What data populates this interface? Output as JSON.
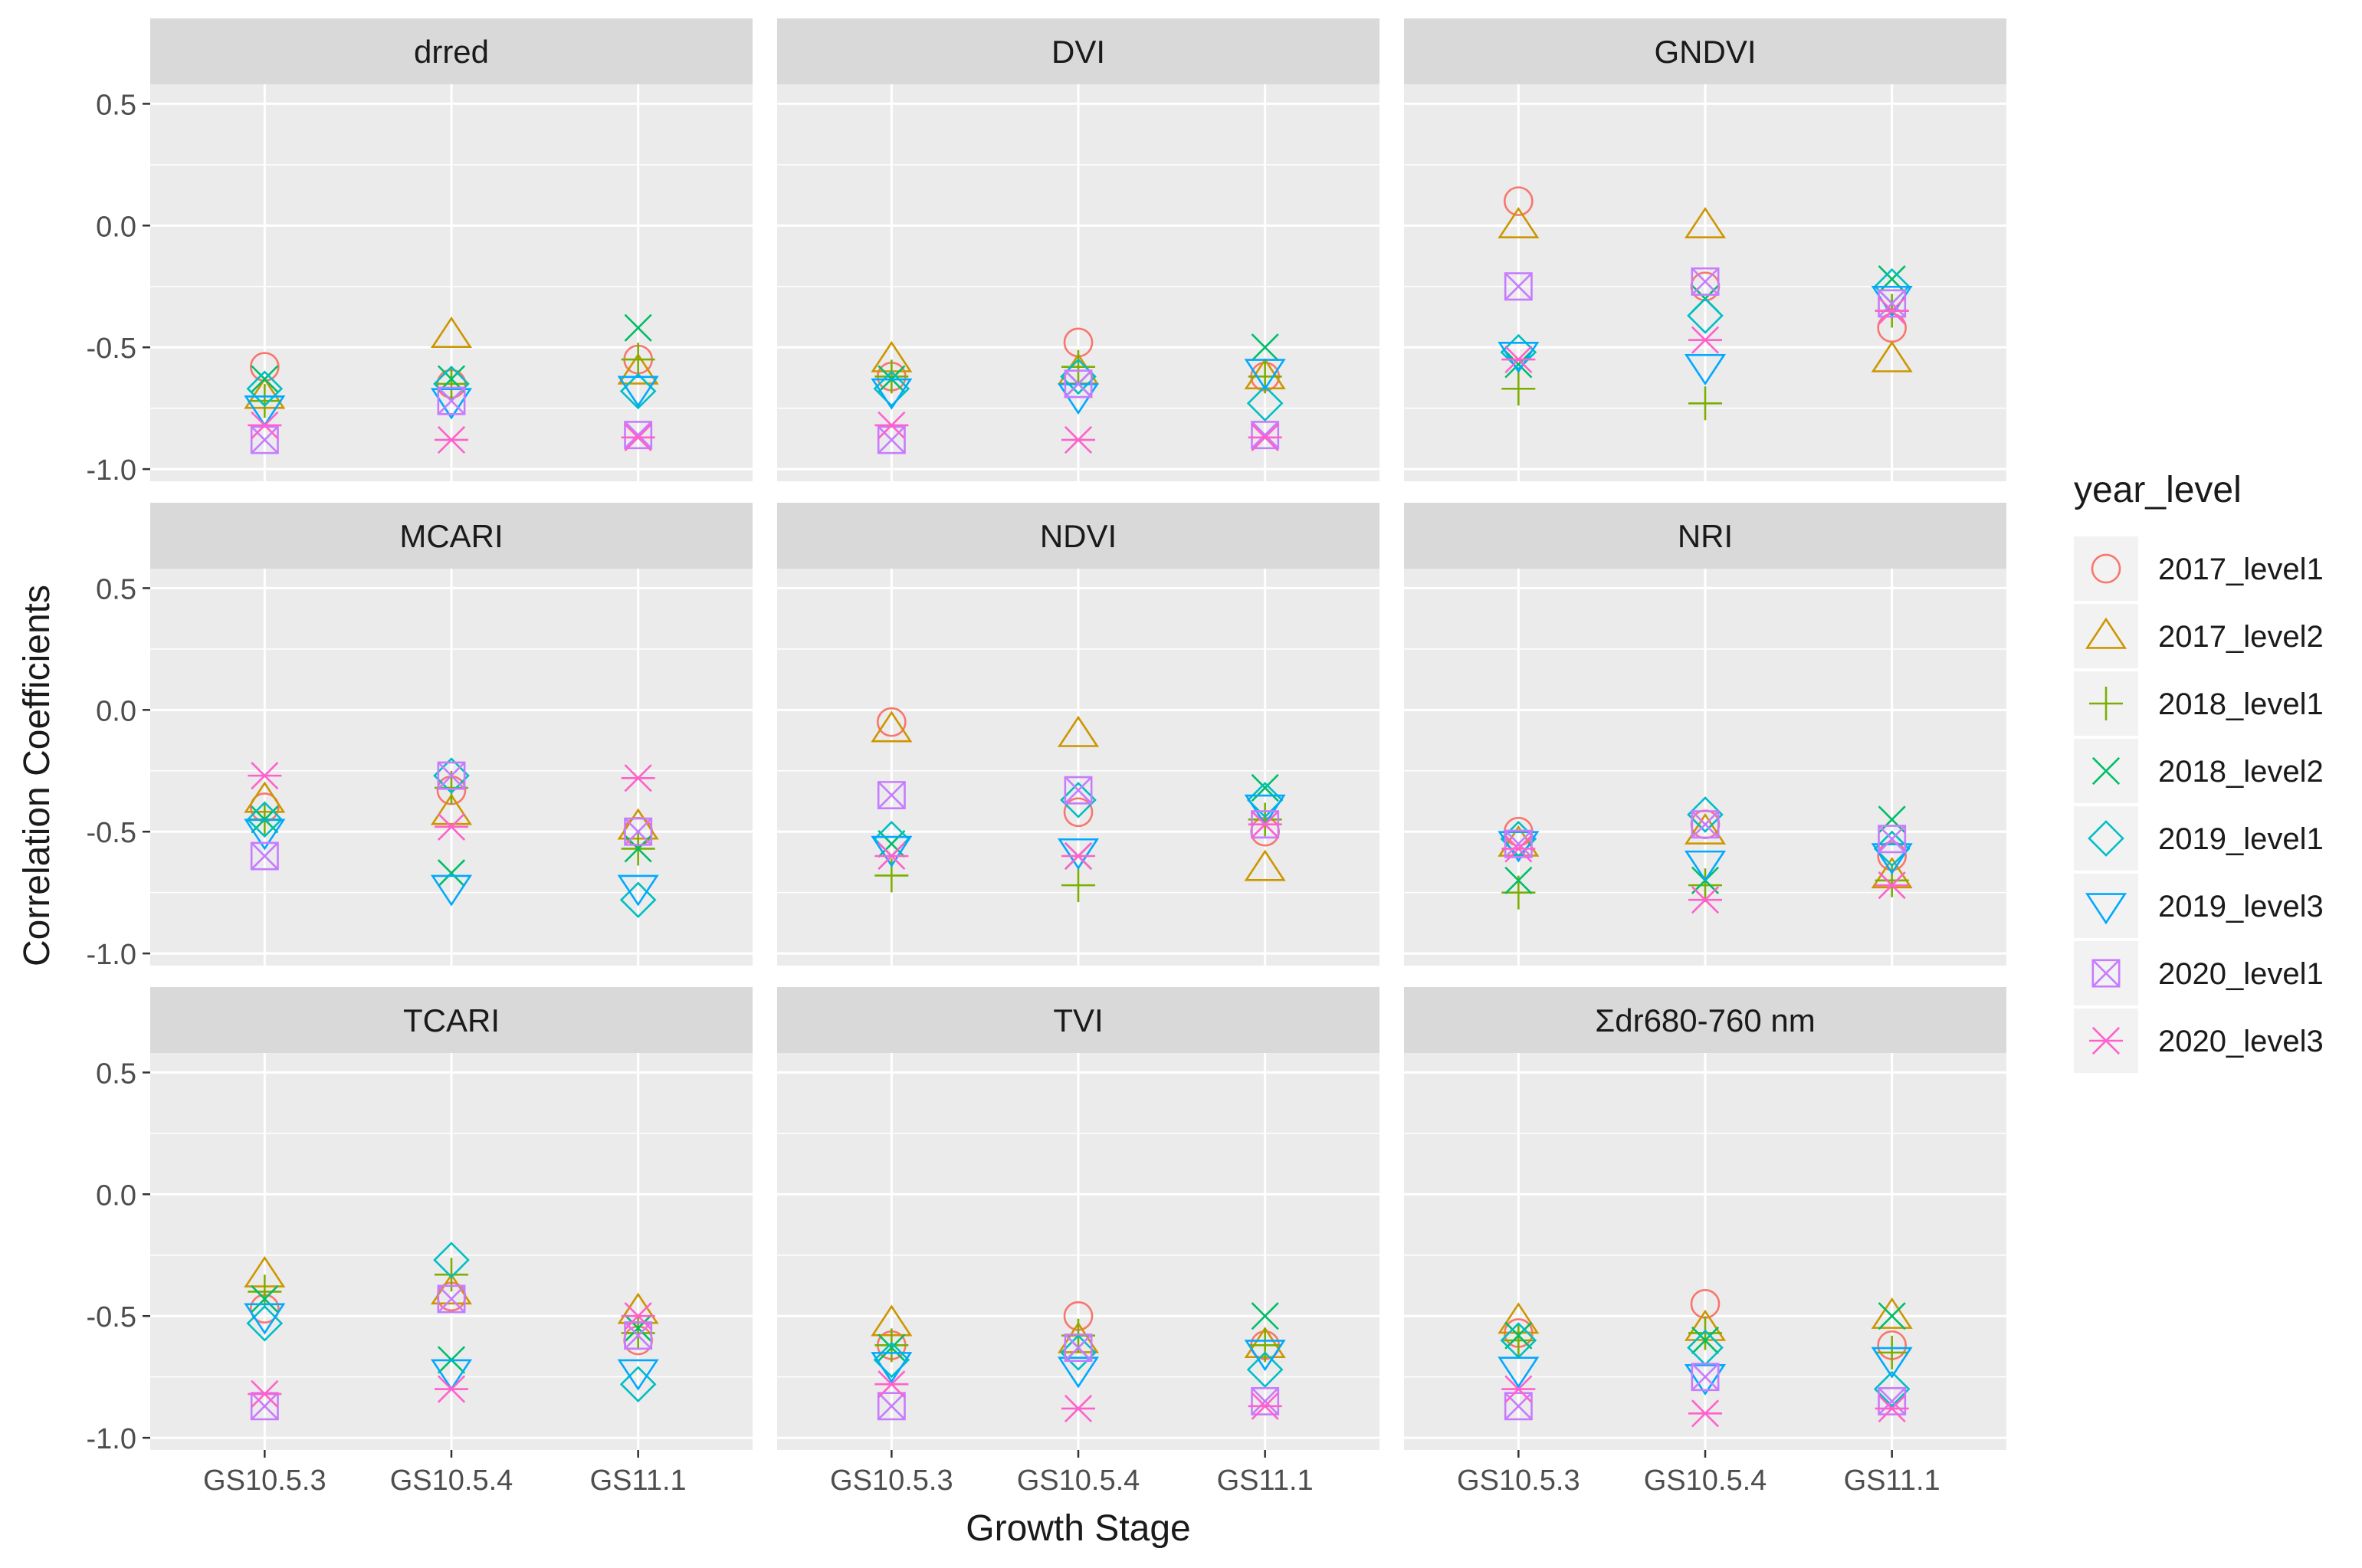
{
  "chart_data": {
    "type": "scatter",
    "xlabel": "Growth Stage",
    "ylabel": "Correlation Coefficients",
    "categories": [
      "GS10.5.3",
      "GS10.5.4",
      "GS11.1"
    ],
    "ylim": [
      -1.05,
      0.58
    ],
    "yticks": [
      0.5,
      0.0,
      -0.5,
      -1.0
    ],
    "ytick_labels": [
      "0.5",
      "0.0",
      "-0.5",
      "-1.0"
    ],
    "grid": true,
    "legend": {
      "title": "year_level",
      "position": "right",
      "entries": [
        {
          "name": "2017_level1",
          "shape": "circle",
          "color": "#F8766D"
        },
        {
          "name": "2017_level2",
          "shape": "triangle-up",
          "color": "#CD9600"
        },
        {
          "name": "2018_level1",
          "shape": "plus",
          "color": "#7CAE00"
        },
        {
          "name": "2018_level2",
          "shape": "cross",
          "color": "#00BE67"
        },
        {
          "name": "2019_level1",
          "shape": "diamond",
          "color": "#00BFC4"
        },
        {
          "name": "2019_level3",
          "shape": "triangle-down",
          "color": "#00A9FF"
        },
        {
          "name": "2020_level1",
          "shape": "square-cross",
          "color": "#C77CFF"
        },
        {
          "name": "2020_level3",
          "shape": "asterisk",
          "color": "#FF61CC"
        }
      ]
    },
    "panels": [
      {
        "name": "drred",
        "series": [
          {
            "name": "2017_level1",
            "values": [
              -0.58,
              -0.65,
              -0.55
            ]
          },
          {
            "name": "2017_level2",
            "values": [
              -0.7,
              -0.45,
              -0.6
            ]
          },
          {
            "name": "2018_level1",
            "values": [
              -0.72,
              -0.65,
              -0.55
            ]
          },
          {
            "name": "2018_level2",
            "values": [
              -0.63,
              -0.63,
              -0.42
            ]
          },
          {
            "name": "2019_level1",
            "values": [
              -0.67,
              -0.65,
              -0.68
            ]
          },
          {
            "name": "2019_level3",
            "values": [
              -0.75,
              -0.72,
              -0.67
            ]
          },
          {
            "name": "2020_level1",
            "values": [
              -0.88,
              -0.72,
              -0.86
            ]
          },
          {
            "name": "2020_level3",
            "values": [
              -0.82,
              -0.88,
              -0.87
            ]
          }
        ]
      },
      {
        "name": "DVI",
        "series": [
          {
            "name": "2017_level1",
            "values": [
              -0.62,
              -0.48,
              -0.62
            ]
          },
          {
            "name": "2017_level2",
            "values": [
              -0.55,
              -0.6,
              -0.62
            ]
          },
          {
            "name": "2018_level1",
            "values": [
              -0.62,
              -0.58,
              -0.62
            ]
          },
          {
            "name": "2018_level2",
            "values": [
              -0.63,
              -0.65,
              -0.5
            ]
          },
          {
            "name": "2019_level1",
            "values": [
              -0.67,
              -0.62,
              -0.73
            ]
          },
          {
            "name": "2019_level3",
            "values": [
              -0.68,
              -0.7,
              -0.6
            ]
          },
          {
            "name": "2020_level1",
            "values": [
              -0.88,
              -0.65,
              -0.86
            ]
          },
          {
            "name": "2020_level3",
            "values": [
              -0.82,
              -0.88,
              -0.87
            ]
          }
        ]
      },
      {
        "name": "GNDVI",
        "series": [
          {
            "name": "2017_level1",
            "values": [
              0.1,
              -0.25,
              -0.42
            ]
          },
          {
            "name": "2017_level2",
            "values": [
              0.0,
              0.0,
              -0.55
            ]
          },
          {
            "name": "2018_level1",
            "values": [
              -0.67,
              -0.73,
              -0.35
            ]
          },
          {
            "name": "2018_level2",
            "values": [
              -0.57,
              -0.3,
              -0.22
            ]
          },
          {
            "name": "2019_level1",
            "values": [
              -0.52,
              -0.37,
              -0.25
            ]
          },
          {
            "name": "2019_level3",
            "values": [
              -0.53,
              -0.58,
              -0.3
            ]
          },
          {
            "name": "2020_level1",
            "values": [
              -0.25,
              -0.23,
              -0.32
            ]
          },
          {
            "name": "2020_level3",
            "values": [
              -0.55,
              -0.47,
              -0.35
            ]
          }
        ]
      },
      {
        "name": "MCARI",
        "series": [
          {
            "name": "2017_level1",
            "values": [
              -0.4,
              -0.33,
              -0.5
            ]
          },
          {
            "name": "2017_level2",
            "values": [
              -0.37,
              -0.42,
              -0.48
            ]
          },
          {
            "name": "2018_level1",
            "values": [
              -0.45,
              -0.32,
              -0.57
            ]
          },
          {
            "name": "2018_level2",
            "values": [
              -0.45,
              -0.67,
              -0.57
            ]
          },
          {
            "name": "2019_level1",
            "values": [
              -0.45,
              -0.27,
              -0.78
            ]
          },
          {
            "name": "2019_level3",
            "values": [
              -0.5,
              -0.73,
              -0.73
            ]
          },
          {
            "name": "2020_level1",
            "values": [
              -0.6,
              -0.27,
              -0.5
            ]
          },
          {
            "name": "2020_level3",
            "values": [
              -0.27,
              -0.48,
              -0.28
            ]
          }
        ]
      },
      {
        "name": "NDVI",
        "series": [
          {
            "name": "2017_level1",
            "values": [
              -0.05,
              -0.42,
              -0.5
            ]
          },
          {
            "name": "2017_level2",
            "values": [
              -0.08,
              -0.1,
              -0.65
            ]
          },
          {
            "name": "2018_level1",
            "values": [
              -0.68,
              -0.72,
              -0.45
            ]
          },
          {
            "name": "2018_level2",
            "values": [
              -0.55,
              -0.6,
              -0.32
            ]
          },
          {
            "name": "2019_level1",
            "values": [
              -0.53,
              -0.37,
              -0.37
            ]
          },
          {
            "name": "2019_level3",
            "values": [
              -0.57,
              -0.58,
              -0.4
            ]
          },
          {
            "name": "2020_level1",
            "values": [
              -0.35,
              -0.33,
              -0.47
            ]
          },
          {
            "name": "2020_level3",
            "values": [
              -0.6,
              -0.6,
              -0.47
            ]
          }
        ]
      },
      {
        "name": "NRI",
        "series": [
          {
            "name": "2017_level1",
            "values": [
              -0.5,
              -0.47,
              -0.6
            ]
          },
          {
            "name": "2017_level2",
            "values": [
              -0.55,
              -0.5,
              -0.68
            ]
          },
          {
            "name": "2018_level1",
            "values": [
              -0.75,
              -0.72,
              -0.7
            ]
          },
          {
            "name": "2018_level2",
            "values": [
              -0.7,
              -0.7,
              -0.45
            ]
          },
          {
            "name": "2019_level1",
            "values": [
              -0.53,
              -0.43,
              -0.57
            ]
          },
          {
            "name": "2019_level3",
            "values": [
              -0.55,
              -0.63,
              -0.6
            ]
          },
          {
            "name": "2020_level1",
            "values": [
              -0.55,
              -0.47,
              -0.53
            ]
          },
          {
            "name": "2020_level3",
            "values": [
              -0.57,
              -0.78,
              -0.72
            ]
          }
        ]
      },
      {
        "name": "TCARI",
        "series": [
          {
            "name": "2017_level1",
            "values": [
              -0.47,
              -0.42,
              -0.6
            ]
          },
          {
            "name": "2017_level2",
            "values": [
              -0.33,
              -0.4,
              -0.48
            ]
          },
          {
            "name": "2018_level1",
            "values": [
              -0.4,
              -0.33,
              -0.57
            ]
          },
          {
            "name": "2018_level2",
            "values": [
              -0.43,
              -0.68,
              -0.55
            ]
          },
          {
            "name": "2019_level1",
            "values": [
              -0.53,
              -0.27,
              -0.78
            ]
          },
          {
            "name": "2019_level3",
            "values": [
              -0.5,
              -0.73,
              -0.73
            ]
          },
          {
            "name": "2020_level1",
            "values": [
              -0.87,
              -0.43,
              -0.58
            ]
          },
          {
            "name": "2020_level3",
            "values": [
              -0.82,
              -0.8,
              -0.5
            ]
          }
        ]
      },
      {
        "name": "TVI",
        "series": [
          {
            "name": "2017_level1",
            "values": [
              -0.62,
              -0.5,
              -0.62
            ]
          },
          {
            "name": "2017_level2",
            "values": [
              -0.53,
              -0.6,
              -0.62
            ]
          },
          {
            "name": "2018_level1",
            "values": [
              -0.62,
              -0.58,
              -0.62
            ]
          },
          {
            "name": "2018_level2",
            "values": [
              -0.63,
              -0.63,
              -0.5
            ]
          },
          {
            "name": "2019_level1",
            "values": [
              -0.68,
              -0.65,
              -0.72
            ]
          },
          {
            "name": "2019_level3",
            "values": [
              -0.7,
              -0.72,
              -0.65
            ]
          },
          {
            "name": "2020_level1",
            "values": [
              -0.87,
              -0.63,
              -0.85
            ]
          },
          {
            "name": "2020_level3",
            "values": [
              -0.78,
              -0.88,
              -0.87
            ]
          }
        ]
      },
      {
        "name": "Σdr680-760 nm",
        "series": [
          {
            "name": "2017_level1",
            "values": [
              -0.57,
              -0.45,
              -0.62
            ]
          },
          {
            "name": "2017_level2",
            "values": [
              -0.52,
              -0.55,
              -0.5
            ]
          },
          {
            "name": "2018_level1",
            "values": [
              -0.6,
              -0.57,
              -0.65
            ]
          },
          {
            "name": "2018_level2",
            "values": [
              -0.58,
              -0.6,
              -0.5
            ]
          },
          {
            "name": "2019_level1",
            "values": [
              -0.6,
              -0.63,
              -0.8
            ]
          },
          {
            "name": "2019_level3",
            "values": [
              -0.72,
              -0.75,
              -0.68
            ]
          },
          {
            "name": "2020_level1",
            "values": [
              -0.87,
              -0.75,
              -0.85
            ]
          },
          {
            "name": "2020_level3",
            "values": [
              -0.8,
              -0.9,
              -0.88
            ]
          }
        ]
      }
    ]
  }
}
